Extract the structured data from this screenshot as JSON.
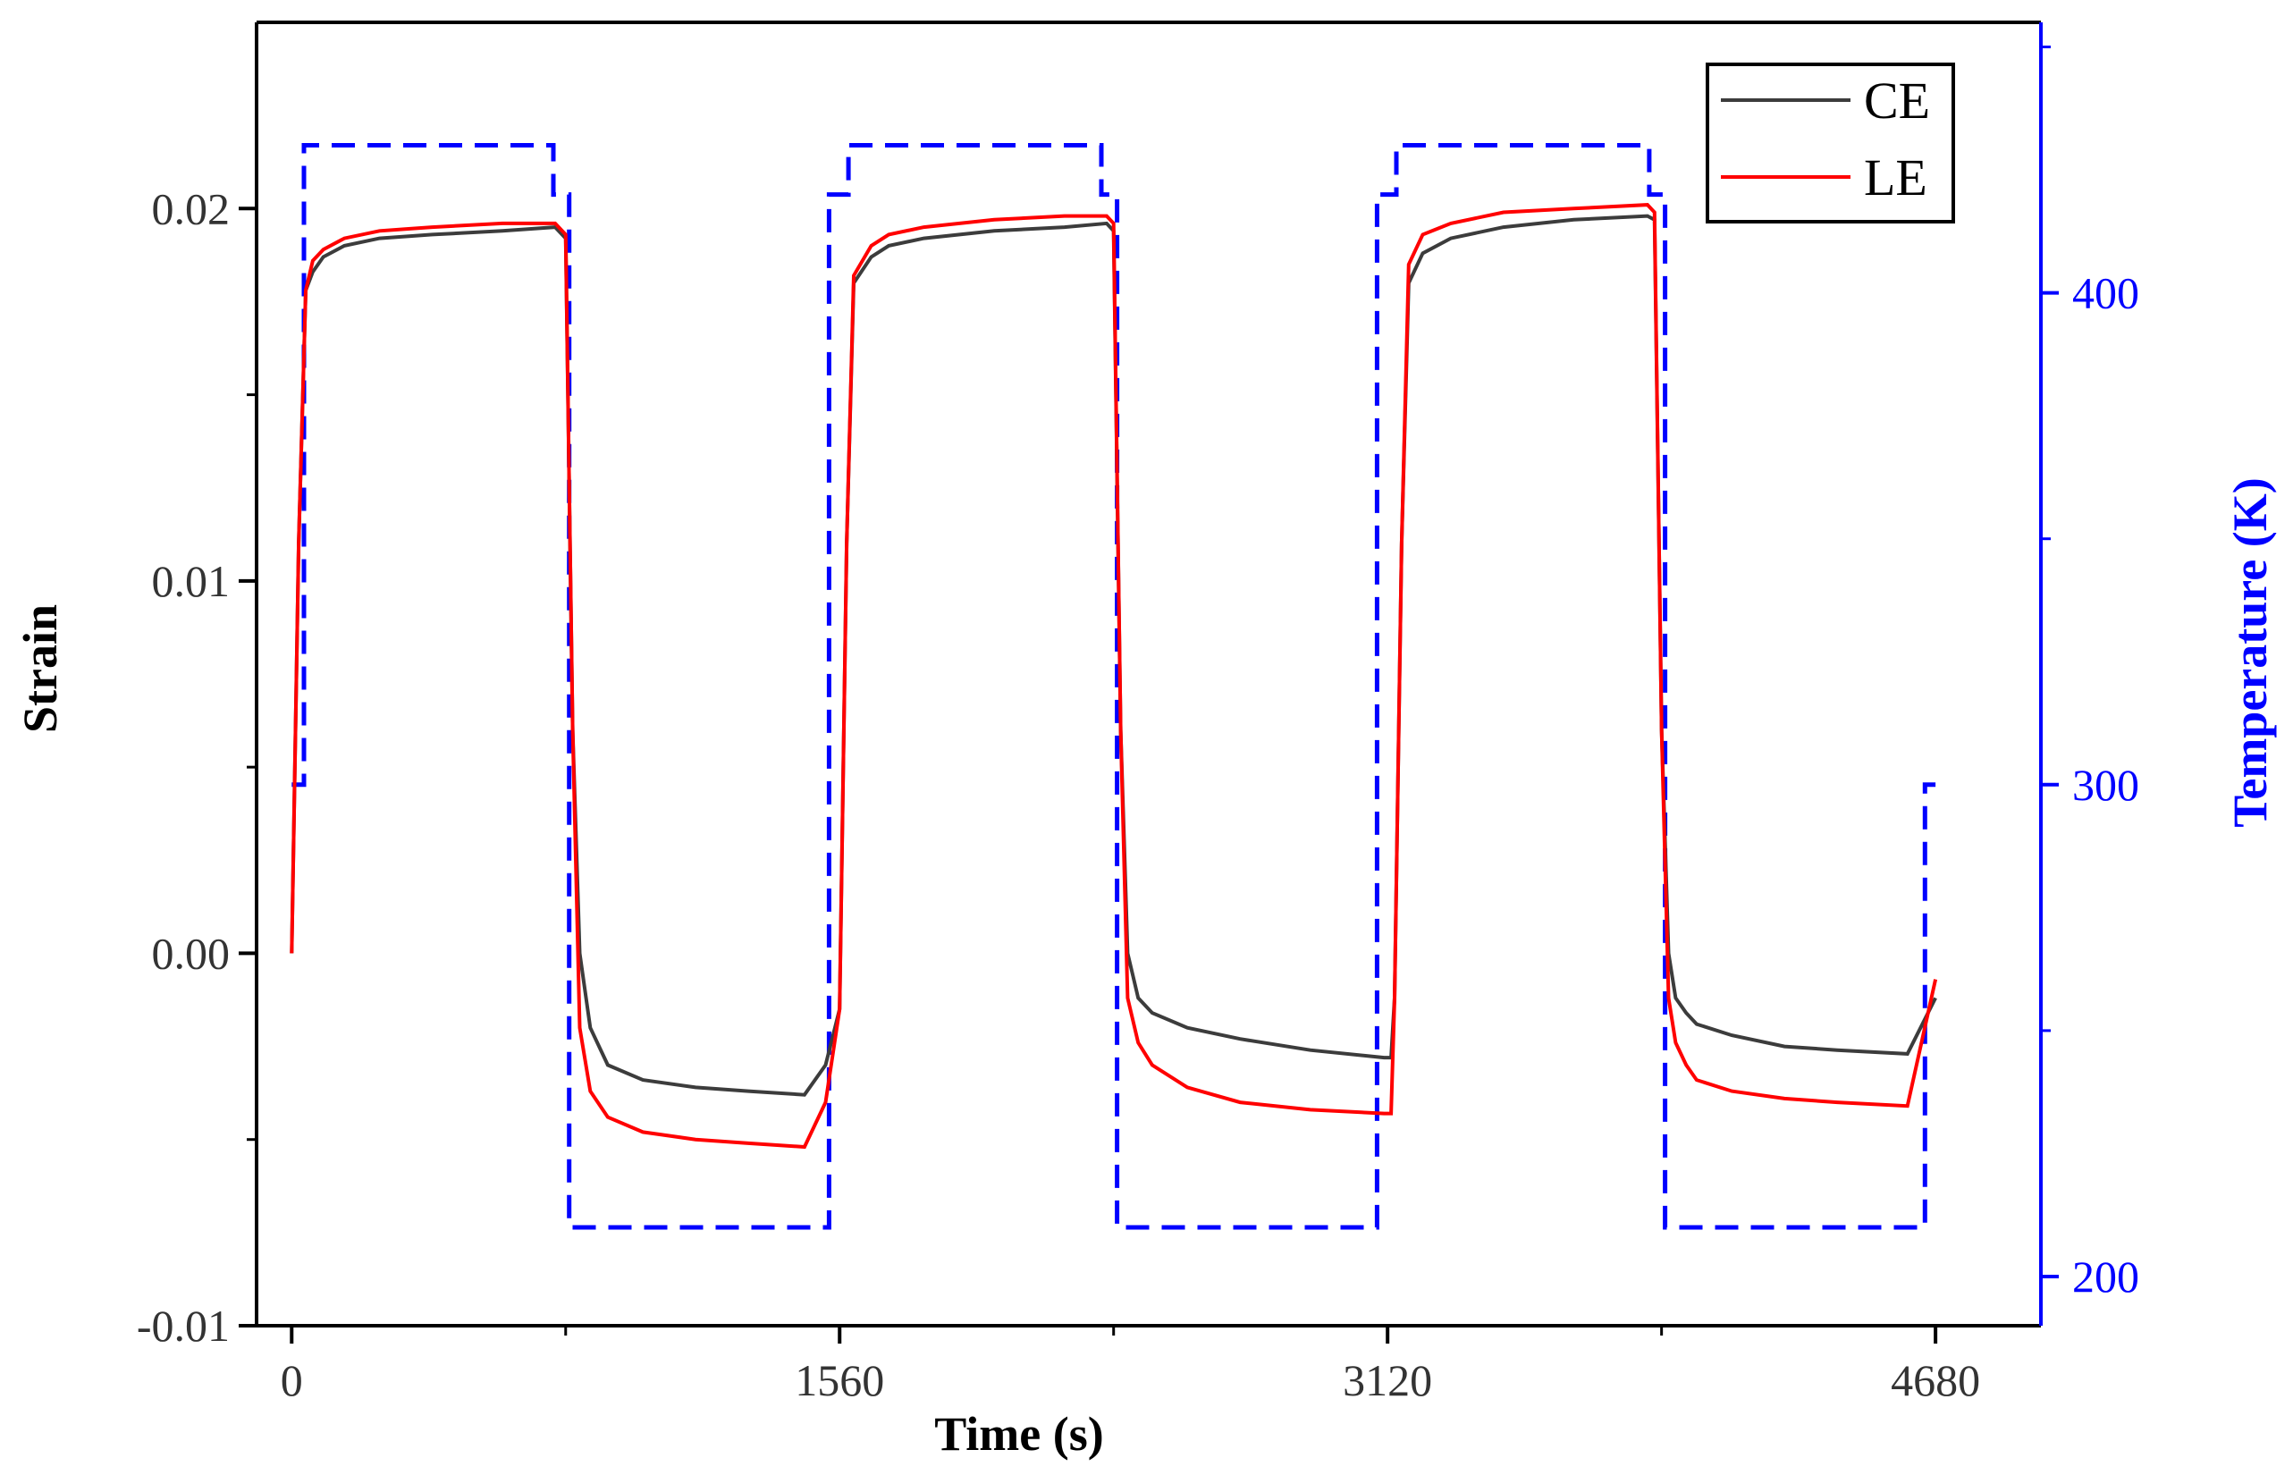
{
  "chart_data": {
    "type": "line",
    "xlabel": "Time (s)",
    "ylabel": "Strain",
    "ylabel_right": "Temperature (K)",
    "xlim": [
      -100,
      4980
    ],
    "ylim": [
      -0.01,
      0.025
    ],
    "ylim_right": [
      190,
      455
    ],
    "xticks": [
      0,
      1560,
      3120,
      4680
    ],
    "xtick_labels": [
      "0",
      "1560",
      "3120",
      "4680"
    ],
    "yticks": [
      -0.01,
      0.0,
      0.01,
      0.02
    ],
    "ytick_labels": [
      "-0.01",
      "0.00",
      "0.01",
      "0.02"
    ],
    "yticks_right": [
      200,
      300,
      400
    ],
    "ytick_labels_right": [
      "200",
      "300",
      "400"
    ],
    "legend_position": "top-right",
    "colors": {
      "ce": "#3c3c3c",
      "le": "#ff0000",
      "temperature": "#0000ff",
      "axis": "#000000",
      "right_axis": "#0000ff"
    },
    "series": [
      {
        "name": "CE",
        "axis": "left",
        "style": "solid",
        "x": [
          0,
          20,
          40,
          60,
          90,
          150,
          250,
          400,
          600,
          750,
          780,
          800,
          820,
          850,
          900,
          1000,
          1150,
          1300,
          1460,
          1520,
          1560,
          1580,
          1600,
          1650,
          1700,
          1800,
          2000,
          2200,
          2320,
          2340,
          2360,
          2380,
          2410,
          2450,
          2550,
          2700,
          2900,
          3110,
          3130,
          3140,
          3160,
          3180,
          3220,
          3300,
          3450,
          3650,
          3860,
          3880,
          3900,
          3920,
          3940,
          3970,
          4000,
          4100,
          4250,
          4400,
          4600,
          4680
        ],
        "values": [
          0.0,
          0.011,
          0.0178,
          0.0183,
          0.0187,
          0.019,
          0.0192,
          0.0193,
          0.0194,
          0.0195,
          0.0192,
          0.006,
          0.0,
          -0.002,
          -0.003,
          -0.0034,
          -0.0036,
          -0.0037,
          -0.0038,
          -0.003,
          -0.0015,
          0.011,
          0.018,
          0.0187,
          0.019,
          0.0192,
          0.0194,
          0.0195,
          0.0196,
          0.0194,
          0.006,
          0.0,
          -0.0012,
          -0.0016,
          -0.002,
          -0.0023,
          -0.0026,
          -0.0028,
          -0.0028,
          -0.0012,
          0.011,
          0.018,
          0.0188,
          0.0192,
          0.0195,
          0.0197,
          0.0198,
          0.0197,
          0.006,
          0.0,
          -0.0012,
          -0.0016,
          -0.0019,
          -0.0022,
          -0.0025,
          -0.0026,
          -0.0027,
          -0.0012
        ]
      },
      {
        "name": "LE",
        "axis": "left",
        "style": "solid",
        "x": [
          0,
          20,
          40,
          60,
          90,
          150,
          250,
          400,
          600,
          750,
          780,
          800,
          820,
          850,
          900,
          1000,
          1150,
          1300,
          1460,
          1520,
          1560,
          1580,
          1600,
          1650,
          1700,
          1800,
          2000,
          2200,
          2320,
          2340,
          2360,
          2380,
          2410,
          2450,
          2550,
          2700,
          2900,
          3110,
          3130,
          3140,
          3160,
          3180,
          3220,
          3300,
          3450,
          3650,
          3860,
          3880,
          3900,
          3920,
          3940,
          3970,
          4000,
          4100,
          4250,
          4400,
          4600,
          4680
        ],
        "values": [
          0.0,
          0.011,
          0.0178,
          0.0186,
          0.0189,
          0.0192,
          0.0194,
          0.0195,
          0.0196,
          0.0196,
          0.0193,
          0.006,
          -0.002,
          -0.0037,
          -0.0044,
          -0.0048,
          -0.005,
          -0.0051,
          -0.0052,
          -0.004,
          -0.0015,
          0.011,
          0.0182,
          0.019,
          0.0193,
          0.0195,
          0.0197,
          0.0198,
          0.0198,
          0.0196,
          0.006,
          -0.0012,
          -0.0024,
          -0.003,
          -0.0036,
          -0.004,
          -0.0042,
          -0.0043,
          -0.0043,
          -0.0012,
          0.011,
          0.0185,
          0.0193,
          0.0196,
          0.0199,
          0.02,
          0.0201,
          0.0199,
          0.006,
          -0.0012,
          -0.0024,
          -0.003,
          -0.0034,
          -0.0037,
          -0.0039,
          -0.004,
          -0.0041,
          -0.0007
        ]
      },
      {
        "name": "Temperature",
        "axis": "right",
        "style": "dashed",
        "x": [
          0,
          35,
          35,
          745,
          745,
          790,
          790,
          1530,
          1530,
          1585,
          1585,
          2305,
          2305,
          2350,
          2350,
          3090,
          3090,
          3145,
          3145,
          3865,
          3865,
          3910,
          3910,
          4650,
          4650,
          4680
        ],
        "values": [
          300,
          300,
          430,
          430,
          420,
          420,
          210,
          210,
          420,
          420,
          430,
          430,
          420,
          420,
          210,
          210,
          420,
          420,
          430,
          430,
          420,
          420,
          210,
          210,
          300,
          300
        ]
      }
    ]
  }
}
